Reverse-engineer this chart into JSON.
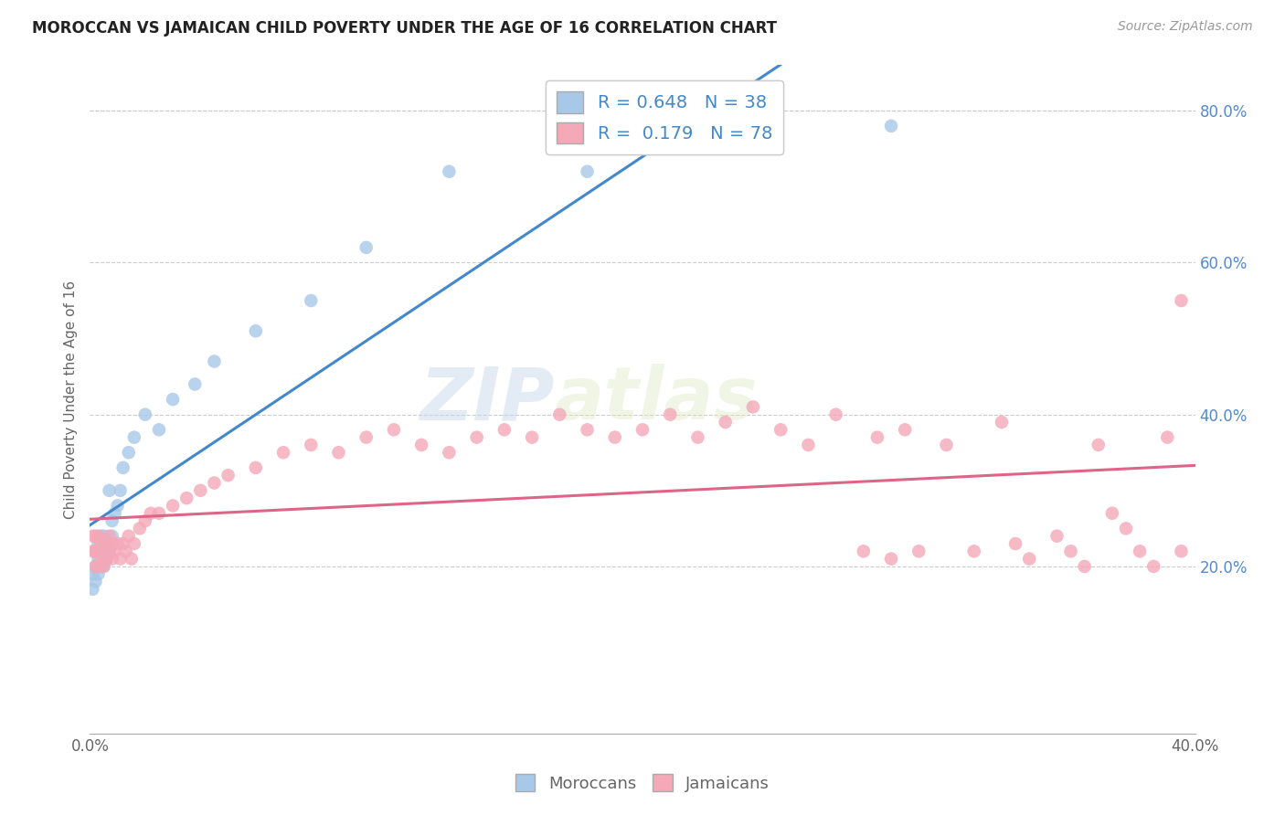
{
  "title": "MOROCCAN VS JAMAICAN CHILD POVERTY UNDER THE AGE OF 16 CORRELATION CHART",
  "source": "Source: ZipAtlas.com",
  "ylabel": "Child Poverty Under the Age of 16",
  "x_min": 0.0,
  "x_max": 0.4,
  "y_min": -0.02,
  "y_max": 0.86,
  "x_ticks": [
    0.0,
    0.4
  ],
  "x_tick_labels": [
    "0.0%",
    "40.0%"
  ],
  "y_ticks_right": [
    0.2,
    0.4,
    0.6,
    0.8
  ],
  "y_tick_labels_right": [
    "20.0%",
    "40.0%",
    "60.0%",
    "80.0%"
  ],
  "moroccan_R": 0.648,
  "moroccan_N": 38,
  "jamaican_R": 0.179,
  "jamaican_N": 78,
  "moroccan_color": "#a8c8e8",
  "jamaican_color": "#f4a8b8",
  "moroccan_line_color": "#4488cc",
  "jamaican_line_color": "#dd6688",
  "legend_text_color": "#4488cc",
  "watermark_zip": "ZIP",
  "watermark_atlas": "atlas",
  "moroccan_x": [
    0.001,
    0.001,
    0.002,
    0.002,
    0.002,
    0.003,
    0.003,
    0.003,
    0.004,
    0.004,
    0.004,
    0.005,
    0.005,
    0.005,
    0.006,
    0.006,
    0.007,
    0.007,
    0.008,
    0.008,
    0.009,
    0.01,
    0.011,
    0.012,
    0.014,
    0.016,
    0.02,
    0.025,
    0.03,
    0.038,
    0.045,
    0.06,
    0.08,
    0.1,
    0.13,
    0.18,
    0.23,
    0.29
  ],
  "moroccan_y": [
    0.17,
    0.19,
    0.18,
    0.2,
    0.22,
    0.19,
    0.21,
    0.23,
    0.2,
    0.22,
    0.24,
    0.2,
    0.22,
    0.24,
    0.21,
    0.23,
    0.22,
    0.3,
    0.24,
    0.26,
    0.27,
    0.28,
    0.3,
    0.33,
    0.35,
    0.37,
    0.4,
    0.38,
    0.42,
    0.44,
    0.47,
    0.51,
    0.55,
    0.62,
    0.72,
    0.72,
    0.75,
    0.78
  ],
  "jamaican_x": [
    0.001,
    0.001,
    0.002,
    0.002,
    0.002,
    0.003,
    0.003,
    0.003,
    0.004,
    0.004,
    0.005,
    0.005,
    0.006,
    0.006,
    0.007,
    0.007,
    0.008,
    0.008,
    0.009,
    0.01,
    0.011,
    0.012,
    0.013,
    0.014,
    0.015,
    0.016,
    0.018,
    0.02,
    0.022,
    0.025,
    0.03,
    0.035,
    0.04,
    0.045,
    0.05,
    0.06,
    0.07,
    0.08,
    0.09,
    0.1,
    0.11,
    0.12,
    0.13,
    0.14,
    0.15,
    0.16,
    0.17,
    0.18,
    0.19,
    0.2,
    0.21,
    0.22,
    0.23,
    0.24,
    0.25,
    0.26,
    0.27,
    0.28,
    0.285,
    0.29,
    0.295,
    0.3,
    0.31,
    0.32,
    0.33,
    0.335,
    0.34,
    0.35,
    0.355,
    0.36,
    0.365,
    0.37,
    0.375,
    0.38,
    0.385,
    0.39,
    0.395,
    0.395
  ],
  "jamaican_y": [
    0.22,
    0.24,
    0.2,
    0.22,
    0.24,
    0.2,
    0.22,
    0.24,
    0.21,
    0.23,
    0.2,
    0.23,
    0.21,
    0.23,
    0.22,
    0.24,
    0.21,
    0.23,
    0.22,
    0.23,
    0.21,
    0.23,
    0.22,
    0.24,
    0.21,
    0.23,
    0.25,
    0.26,
    0.27,
    0.27,
    0.28,
    0.29,
    0.3,
    0.31,
    0.32,
    0.33,
    0.35,
    0.36,
    0.35,
    0.37,
    0.38,
    0.36,
    0.35,
    0.37,
    0.38,
    0.37,
    0.4,
    0.38,
    0.37,
    0.38,
    0.4,
    0.37,
    0.39,
    0.41,
    0.38,
    0.36,
    0.4,
    0.22,
    0.37,
    0.21,
    0.38,
    0.22,
    0.36,
    0.22,
    0.39,
    0.23,
    0.21,
    0.24,
    0.22,
    0.2,
    0.36,
    0.27,
    0.25,
    0.22,
    0.2,
    0.37,
    0.55,
    0.22
  ]
}
